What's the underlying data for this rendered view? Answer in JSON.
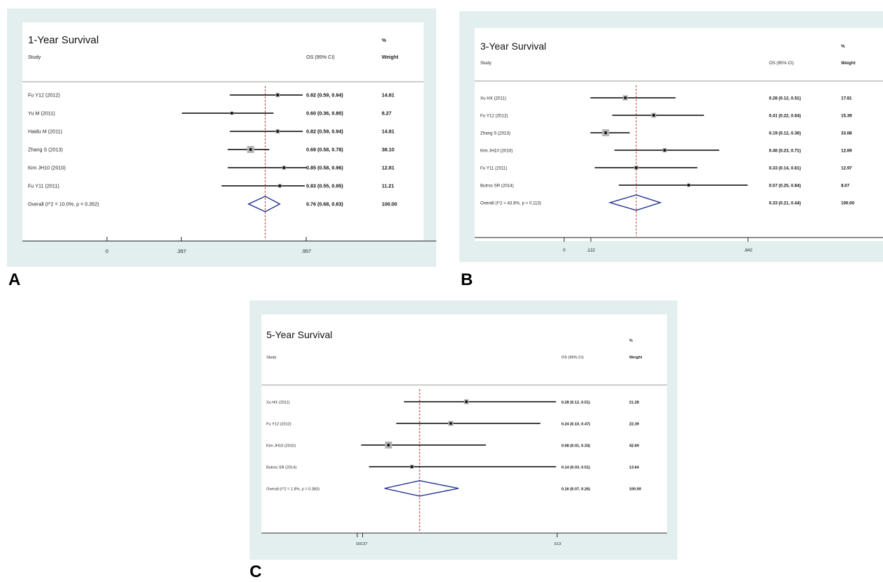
{
  "colors": {
    "panel_bg": "#e2efee",
    "plot_bg": "#ffffff",
    "ci_line": "#000000",
    "weight_box": "#b3b3b3",
    "ref_line": "#c0392b",
    "diamond": "#1f2f8c"
  },
  "chart_data": [
    {
      "type": "forest",
      "panel_label": "A",
      "title": "1-Year Survival",
      "headers": {
        "study": "Study",
        "estimate": "OS (95% CI)",
        "weight_top": "%",
        "weight": "Weight"
      },
      "xlim": [
        -0.7,
        1.1
      ],
      "ticks": [
        {
          "value": 0,
          "label": "0"
        },
        {
          "value": 0.357,
          "label": ".357"
        },
        {
          "value": 0.957,
          "label": ".957"
        }
      ],
      "reference": 0.76,
      "studies": [
        {
          "label": "Fu Y12 (2012)",
          "est": 0.82,
          "lo": 0.59,
          "hi": 0.94,
          "ci_text": "0.82 (0.59, 0.94)",
          "weight": 14.81,
          "weight_text": "14.81"
        },
        {
          "label": "Yu M (2011)",
          "est": 0.6,
          "lo": 0.36,
          "hi": 0.8,
          "ci_text": "0.60 (0.36, 0.80)",
          "weight": 8.27,
          "weight_text": "8.27"
        },
        {
          "label": "Haidu M (2011)",
          "est": 0.82,
          "lo": 0.59,
          "hi": 0.94,
          "ci_text": "0.82 (0.59, 0.94)",
          "weight": 14.81,
          "weight_text": "14.81"
        },
        {
          "label": "Zhang S (2013)",
          "est": 0.69,
          "lo": 0.58,
          "hi": 0.78,
          "ci_text": "0.69 (0.58, 0.78)",
          "weight": 38.1,
          "weight_text": "38.10"
        },
        {
          "label": "Kim JH10 (2010)",
          "est": 0.85,
          "lo": 0.58,
          "hi": 0.96,
          "ci_text": "0.85 (0.58, 0.96)",
          "weight": 12.81,
          "weight_text": "12.81"
        },
        {
          "label": "Fu Y11 (2011)",
          "est": 0.83,
          "lo": 0.55,
          "hi": 0.95,
          "ci_text": "0.83 (0.55, 0.95)",
          "weight": 11.21,
          "weight_text": "11.21"
        }
      ],
      "overall": {
        "label": "Overall  (I^2 = 10.0%, p = 0.352)",
        "est": 0.76,
        "lo": 0.68,
        "hi": 0.83,
        "ci_text": "0.76 (0.68, 0.83)",
        "weight_text": "100.00"
      }
    },
    {
      "type": "forest",
      "panel_label": "B",
      "title": "3-Year Survival",
      "headers": {
        "study": "Study",
        "estimate": "OS (95% CI)",
        "weight_top": "%",
        "weight": "Weight"
      },
      "xlim": [
        -0.4,
        1.1
      ],
      "ticks": [
        {
          "value": 0,
          "label": "0"
        },
        {
          "value": 0.122,
          "label": ".122"
        },
        {
          "value": 0.842,
          "label": ".842"
        }
      ],
      "reference": 0.33,
      "studies": [
        {
          "label": "Xu HX (2011)",
          "est": 0.28,
          "lo": 0.12,
          "hi": 0.51,
          "ci_text": "0.28 (0.12, 0.51)",
          "weight": 17.81,
          "weight_text": "17.81"
        },
        {
          "label": "Fu Y12 (2012)",
          "est": 0.41,
          "lo": 0.22,
          "hi": 0.64,
          "ci_text": "0.41 (0.22, 0.64)",
          "weight": 15.39,
          "weight_text": "15.39"
        },
        {
          "label": "Zhang S (2013)",
          "est": 0.19,
          "lo": 0.12,
          "hi": 0.3,
          "ci_text": "0.19 (0.12, 0.30)",
          "weight": 33.08,
          "weight_text": "33.08"
        },
        {
          "label": "Kim JH10 (2010)",
          "est": 0.46,
          "lo": 0.23,
          "hi": 0.71,
          "ci_text": "0.46 (0.23, 0.71)",
          "weight": 12.69,
          "weight_text": "12.69"
        },
        {
          "label": "Fu Y11 (2011)",
          "est": 0.33,
          "lo": 0.14,
          "hi": 0.61,
          "ci_text": "0.33 (0.14, 0.61)",
          "weight": 12.97,
          "weight_text": "12.97"
        },
        {
          "label": "Butros SR (2014)",
          "est": 0.57,
          "lo": 0.25,
          "hi": 0.84,
          "ci_text": "0.57 (0.25, 0.84)",
          "weight": 8.07,
          "weight_text": "8.07"
        }
      ],
      "overall": {
        "label": "Overall  (I^2 = 43.8%, p = 0.113)",
        "est": 0.33,
        "lo": 0.21,
        "hi": 0.44,
        "ci_text": "0.33 (0.21, 0.44)",
        "weight_text": "100.00"
      }
    },
    {
      "type": "forest",
      "panel_label": "C",
      "title": "5-Year Survival",
      "headers": {
        "study": "Study",
        "estimate": "OS (95% CI)",
        "weight_top": "%",
        "weight": "Weight"
      },
      "xlim": [
        -0.55,
        0.7
      ],
      "ticks": [
        {
          "value": 0,
          "label": "0"
        },
        {
          "value": 0.0137,
          "label": ".0137"
        },
        {
          "value": 0.513,
          "label": ".513"
        }
      ],
      "reference": 0.16,
      "studies": [
        {
          "label": "Xu HX (2011)",
          "est": 0.28,
          "lo": 0.12,
          "hi": 0.51,
          "ci_text": "0.28 (0.12, 0.51)",
          "weight": 21.28,
          "weight_text": "21.28"
        },
        {
          "label": "Fu Y12 (2012)",
          "est": 0.24,
          "lo": 0.1,
          "hi": 0.47,
          "ci_text": "0.24 (0.10, 0.47)",
          "weight": 22.39,
          "weight_text": "22.39"
        },
        {
          "label": "Kim JH10 (2010)",
          "est": 0.08,
          "lo": 0.01,
          "hi": 0.33,
          "ci_text": "0.08 (0.01, 0.33)",
          "weight": 42.69,
          "weight_text": "42.69"
        },
        {
          "label": "Butros SR (2014)",
          "est": 0.14,
          "lo": 0.03,
          "hi": 0.51,
          "ci_text": "0.14 (0.03, 0.51)",
          "weight": 13.64,
          "weight_text": "13.64"
        }
      ],
      "overall": {
        "label": "Overall  (I^2 = 1.8%, p = 0.383)",
        "est": 0.16,
        "lo": 0.07,
        "hi": 0.26,
        "ci_text": "0.16 (0.07, 0.26)",
        "weight_text": "100.00"
      }
    }
  ]
}
